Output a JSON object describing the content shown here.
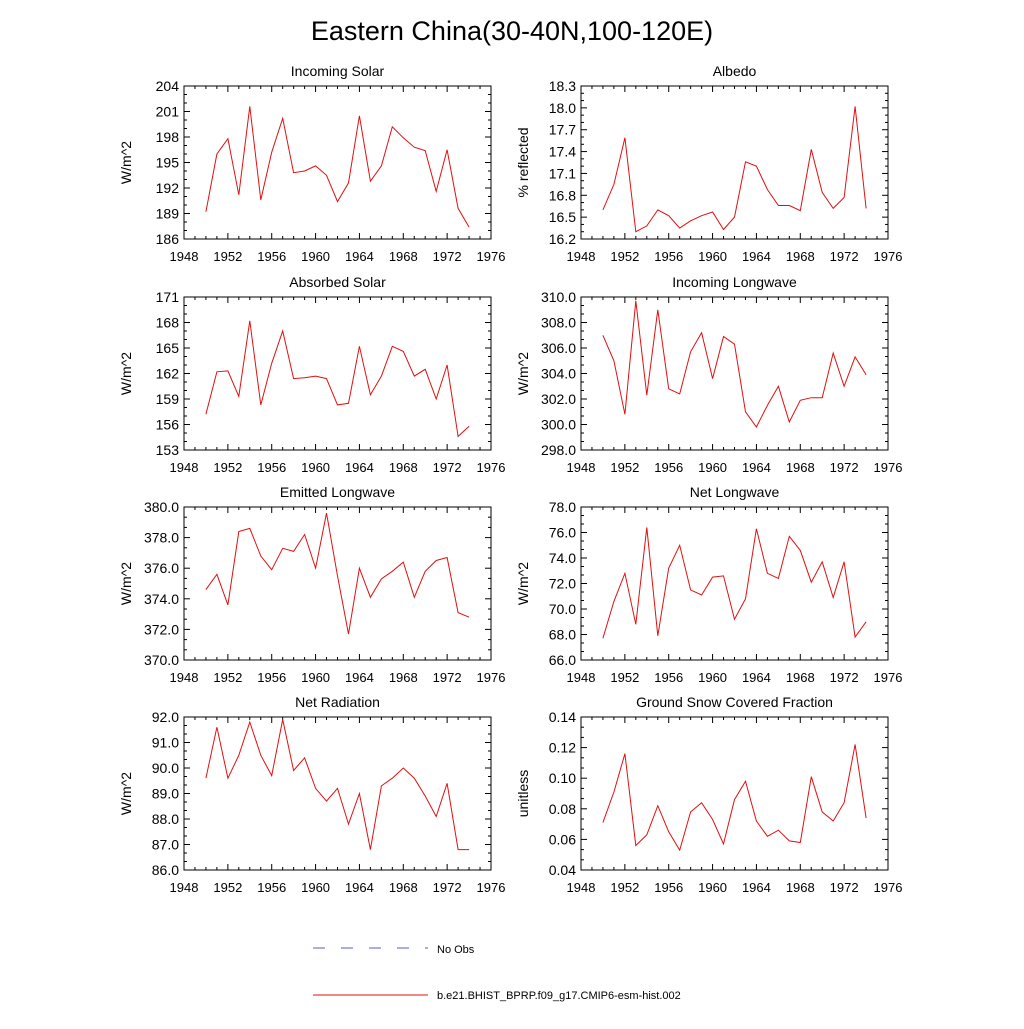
{
  "page_title": "Eastern China(30-40N,100-120E)",
  "colors": {
    "model_line": "#e01010",
    "obs_line": "#5a5ad0",
    "axis": "#000000"
  },
  "legend": {
    "obs_label": "No Obs",
    "model_label": "b.e21.BHIST_BPRP.f09_g17.CMIP6-esm-hist.002"
  },
  "chart_data": [
    {
      "type": "line",
      "id": "incoming-solar",
      "title": "Incoming Solar",
      "xlabel": "",
      "ylabel": "W/m^2",
      "xlim": [
        1948,
        1976
      ],
      "ylim": [
        186,
        204
      ],
      "xticks": [
        1948,
        1952,
        1956,
        1960,
        1964,
        1968,
        1972,
        1976
      ],
      "yticks": [
        186,
        189,
        192,
        195,
        198,
        201,
        204
      ],
      "ytick_labels": [
        "186",
        "189",
        "192",
        "195",
        "198",
        "201",
        "204"
      ],
      "series": [
        {
          "name": "b.e21.BHIST_BPRP.f09_g17.CMIP6-esm-hist.002",
          "x": [
            1950,
            1951,
            1952,
            1953,
            1954,
            1955,
            1956,
            1957,
            1958,
            1959,
            1960,
            1961,
            1962,
            1963,
            1964,
            1965,
            1966,
            1967,
            1968,
            1969,
            1970,
            1971,
            1972,
            1973,
            1974
          ],
          "values": [
            189.2,
            196.0,
            197.8,
            191.2,
            201.6,
            190.6,
            196.2,
            200.2,
            193.8,
            194.0,
            194.6,
            193.5,
            190.4,
            192.6,
            200.5,
            192.8,
            194.6,
            199.2,
            197.9,
            196.8,
            196.4,
            191.6,
            196.5,
            189.6,
            187.4
          ]
        }
      ]
    },
    {
      "type": "line",
      "id": "albedo",
      "title": "Albedo",
      "xlabel": "",
      "ylabel": "% reflected",
      "xlim": [
        1948,
        1976
      ],
      "ylim": [
        16.2,
        18.3
      ],
      "xticks": [
        1948,
        1952,
        1956,
        1960,
        1964,
        1968,
        1972,
        1976
      ],
      "yticks": [
        16.2,
        16.5,
        16.8,
        17.1,
        17.4,
        17.7,
        18.0,
        18.3
      ],
      "ytick_labels": [
        "16.2",
        "16.5",
        "16.8",
        "17.1",
        "17.4",
        "17.7",
        "18.0",
        "18.3"
      ],
      "series": [
        {
          "name": "b.e21.BHIST_BPRP.f09_g17.CMIP6-esm-hist.002",
          "x": [
            1950,
            1951,
            1952,
            1953,
            1954,
            1955,
            1956,
            1957,
            1958,
            1959,
            1960,
            1961,
            1962,
            1963,
            1964,
            1965,
            1966,
            1967,
            1968,
            1969,
            1970,
            1971,
            1972,
            1973,
            1974
          ],
          "values": [
            16.6,
            16.95,
            17.59,
            16.3,
            16.38,
            16.6,
            16.52,
            16.35,
            16.45,
            16.52,
            16.57,
            16.33,
            16.5,
            17.26,
            17.2,
            16.88,
            16.66,
            16.66,
            16.59,
            17.43,
            16.84,
            16.62,
            16.77,
            18.02,
            16.62
          ]
        }
      ]
    },
    {
      "type": "line",
      "id": "absorbed-solar",
      "title": "Absorbed Solar",
      "xlabel": "",
      "ylabel": "W/m^2",
      "xlim": [
        1948,
        1976
      ],
      "ylim": [
        153,
        171
      ],
      "xticks": [
        1948,
        1952,
        1956,
        1960,
        1964,
        1968,
        1972,
        1976
      ],
      "yticks": [
        153,
        156,
        159,
        162,
        165,
        168,
        171
      ],
      "ytick_labels": [
        "153",
        "156",
        "159",
        "162",
        "165",
        "168",
        "171"
      ],
      "series": [
        {
          "name": "b.e21.BHIST_BPRP.f09_g17.CMIP6-esm-hist.002",
          "x": [
            1950,
            1951,
            1952,
            1953,
            1954,
            1955,
            1956,
            1957,
            1958,
            1959,
            1960,
            1961,
            1962,
            1963,
            1964,
            1965,
            1966,
            1967,
            1968,
            1969,
            1970,
            1971,
            1972,
            1973,
            1974
          ],
          "values": [
            157.2,
            162.2,
            162.3,
            159.3,
            168.2,
            158.3,
            163.2,
            167.0,
            161.4,
            161.5,
            161.7,
            161.4,
            158.3,
            158.5,
            165.2,
            159.5,
            161.7,
            165.2,
            164.6,
            161.7,
            162.5,
            159.0,
            163.0,
            154.6,
            155.8
          ]
        }
      ]
    },
    {
      "type": "line",
      "id": "incoming-longwave",
      "title": "Incoming Longwave",
      "xlabel": "",
      "ylabel": "W/m^2",
      "xlim": [
        1948,
        1976
      ],
      "ylim": [
        298.0,
        310.0
      ],
      "xticks": [
        1948,
        1952,
        1956,
        1960,
        1964,
        1968,
        1972,
        1976
      ],
      "yticks": [
        298,
        300,
        302,
        304,
        306,
        308,
        310
      ],
      "ytick_labels": [
        "298.0",
        "300.0",
        "302.0",
        "304.0",
        "306.0",
        "308.0",
        "310.0"
      ],
      "series": [
        {
          "name": "b.e21.BHIST_BPRP.f09_g17.CMIP6-esm-hist.002",
          "x": [
            1950,
            1951,
            1952,
            1953,
            1954,
            1955,
            1956,
            1957,
            1958,
            1959,
            1960,
            1961,
            1962,
            1963,
            1964,
            1965,
            1966,
            1967,
            1968,
            1969,
            1970,
            1971,
            1972,
            1973,
            1974
          ],
          "values": [
            307.0,
            305.0,
            300.8,
            309.7,
            302.3,
            309.0,
            302.8,
            302.4,
            305.7,
            307.2,
            303.6,
            306.9,
            306.3,
            301.0,
            299.8,
            301.5,
            303.0,
            300.2,
            301.9,
            302.1,
            302.1,
            305.6,
            303.0,
            305.3,
            303.9
          ]
        }
      ]
    },
    {
      "type": "line",
      "id": "emitted-longwave",
      "title": "Emitted Longwave",
      "xlabel": "",
      "ylabel": "W/m^2",
      "xlim": [
        1948,
        1976
      ],
      "ylim": [
        370.0,
        380.0
      ],
      "xticks": [
        1948,
        1952,
        1956,
        1960,
        1964,
        1968,
        1972,
        1976
      ],
      "yticks": [
        370,
        372,
        374,
        376,
        378,
        380
      ],
      "ytick_labels": [
        "370.0",
        "372.0",
        "374.0",
        "376.0",
        "378.0",
        "380.0"
      ],
      "series": [
        {
          "name": "b.e21.BHIST_BPRP.f09_g17.CMIP6-esm-hist.002",
          "x": [
            1950,
            1951,
            1952,
            1953,
            1954,
            1955,
            1956,
            1957,
            1958,
            1959,
            1960,
            1961,
            1962,
            1963,
            1964,
            1965,
            1966,
            1967,
            1968,
            1969,
            1970,
            1971,
            1972,
            1973,
            1974
          ],
          "values": [
            374.6,
            375.6,
            373.6,
            378.4,
            378.6,
            376.8,
            375.9,
            377.3,
            377.1,
            378.2,
            376.0,
            379.6,
            375.5,
            371.7,
            376.0,
            374.1,
            375.3,
            375.8,
            376.4,
            374.1,
            375.8,
            376.5,
            376.7,
            373.1,
            372.8
          ]
        }
      ]
    },
    {
      "type": "line",
      "id": "net-longwave",
      "title": "Net Longwave",
      "xlabel": "",
      "ylabel": "W/m^2",
      "xlim": [
        1948,
        1976
      ],
      "ylim": [
        66.0,
        78.0
      ],
      "xticks": [
        1948,
        1952,
        1956,
        1960,
        1964,
        1968,
        1972,
        1976
      ],
      "yticks": [
        66,
        68,
        70,
        72,
        74,
        76,
        78
      ],
      "ytick_labels": [
        "66.0",
        "68.0",
        "70.0",
        "72.0",
        "74.0",
        "76.0",
        "78.0"
      ],
      "series": [
        {
          "name": "b.e21.BHIST_BPRP.f09_g17.CMIP6-esm-hist.002",
          "x": [
            1950,
            1951,
            1952,
            1953,
            1954,
            1955,
            1956,
            1957,
            1958,
            1959,
            1960,
            1961,
            1962,
            1963,
            1964,
            1965,
            1966,
            1967,
            1968,
            1969,
            1970,
            1971,
            1972,
            1973,
            1974
          ],
          "values": [
            67.7,
            70.6,
            72.8,
            68.8,
            76.4,
            67.9,
            73.2,
            75.0,
            71.5,
            71.1,
            72.5,
            72.6,
            69.2,
            70.8,
            76.3,
            72.8,
            72.4,
            75.7,
            74.6,
            72.1,
            73.7,
            70.9,
            73.7,
            67.8,
            69.0
          ]
        }
      ]
    },
    {
      "type": "line",
      "id": "net-radiation",
      "title": "Net Radiation",
      "xlabel": "",
      "ylabel": "W/m^2",
      "xlim": [
        1948,
        1976
      ],
      "ylim": [
        86.0,
        92.0
      ],
      "xticks": [
        1948,
        1952,
        1956,
        1960,
        1964,
        1968,
        1972,
        1976
      ],
      "yticks": [
        86,
        87,
        88,
        89,
        90,
        91,
        92
      ],
      "ytick_labels": [
        "86.0",
        "87.0",
        "88.0",
        "89.0",
        "90.0",
        "91.0",
        "92.0"
      ],
      "series": [
        {
          "name": "b.e21.BHIST_BPRP.f09_g17.CMIP6-esm-hist.002",
          "x": [
            1950,
            1951,
            1952,
            1953,
            1954,
            1955,
            1956,
            1957,
            1958,
            1959,
            1960,
            1961,
            1962,
            1963,
            1964,
            1965,
            1966,
            1967,
            1968,
            1969,
            1970,
            1971,
            1972,
            1973,
            1974
          ],
          "values": [
            89.6,
            91.6,
            89.6,
            90.5,
            91.8,
            90.5,
            89.7,
            91.9,
            89.9,
            90.4,
            89.2,
            88.7,
            89.2,
            87.8,
            89.0,
            86.8,
            89.3,
            89.6,
            90.0,
            89.6,
            88.9,
            88.1,
            89.4,
            86.8,
            86.8
          ]
        }
      ]
    },
    {
      "type": "line",
      "id": "ground-snow",
      "title": "Ground Snow Covered Fraction",
      "xlabel": "",
      "ylabel": "unitless",
      "xlim": [
        1948,
        1976
      ],
      "ylim": [
        0.04,
        0.14
      ],
      "xticks": [
        1948,
        1952,
        1956,
        1960,
        1964,
        1968,
        1972,
        1976
      ],
      "yticks": [
        0.04,
        0.06,
        0.08,
        0.1,
        0.12,
        0.14
      ],
      "ytick_labels": [
        "0.04",
        "0.06",
        "0.08",
        "0.10",
        "0.12",
        "0.14"
      ],
      "series": [
        {
          "name": "b.e21.BHIST_BPRP.f09_g17.CMIP6-esm-hist.002",
          "x": [
            1950,
            1951,
            1952,
            1953,
            1954,
            1955,
            1956,
            1957,
            1958,
            1959,
            1960,
            1961,
            1962,
            1963,
            1964,
            1965,
            1966,
            1967,
            1968,
            1969,
            1970,
            1971,
            1972,
            1973,
            1974
          ],
          "values": [
            0.071,
            0.091,
            0.116,
            0.056,
            0.063,
            0.082,
            0.065,
            0.053,
            0.078,
            0.084,
            0.073,
            0.057,
            0.086,
            0.098,
            0.072,
            0.062,
            0.066,
            0.059,
            0.058,
            0.101,
            0.078,
            0.072,
            0.084,
            0.122,
            0.074
          ]
        }
      ]
    }
  ]
}
